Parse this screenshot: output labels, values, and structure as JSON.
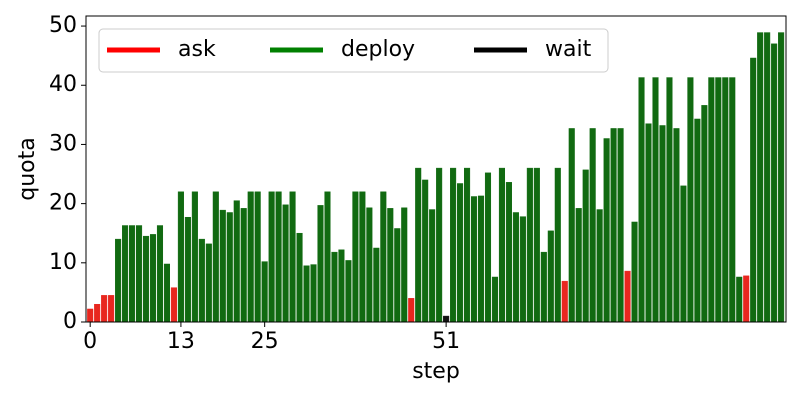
{
  "chart_data": {
    "type": "bar",
    "xlabel": "step",
    "ylabel": "quota",
    "xlim": [
      -0.6,
      99.7
    ],
    "ylim": [
      0,
      51.7
    ],
    "xticks": [
      0,
      13,
      25,
      51
    ],
    "yticks": [
      0,
      10,
      20,
      30,
      40,
      50
    ],
    "grid": false,
    "legend": "upper left",
    "series": [
      {
        "name": "ask",
        "color": "red",
        "x": [
          0,
          1,
          2,
          3,
          12,
          46,
          68,
          77,
          94
        ],
        "values": [
          2.2,
          3,
          4.5,
          4.5,
          5.8,
          4,
          6.9,
          8.6,
          7.8
        ]
      },
      {
        "name": "deploy",
        "color": "green",
        "x": [
          4,
          5,
          6,
          7,
          8,
          9,
          10,
          11,
          13,
          14,
          15,
          16,
          17,
          18,
          19,
          20,
          21,
          22,
          23,
          24,
          25,
          26,
          27,
          28,
          29,
          30,
          31,
          32,
          33,
          34,
          35,
          36,
          37,
          38,
          39,
          40,
          41,
          42,
          43,
          44,
          45,
          47,
          48,
          49,
          50,
          52,
          53,
          54,
          55,
          56,
          57,
          58,
          59,
          60,
          61,
          62,
          63,
          64,
          65,
          66,
          67,
          69,
          70,
          71,
          72,
          73,
          74,
          75,
          76,
          78,
          79,
          80,
          81,
          82,
          83,
          84,
          85,
          86,
          87,
          88,
          89,
          90,
          91,
          92,
          93,
          95,
          96,
          97,
          98,
          99
        ],
        "values": [
          14,
          16.3,
          16.3,
          16.3,
          14.5,
          14.8,
          16.3,
          9.8,
          22,
          17.7,
          22,
          14,
          13.2,
          22,
          18.9,
          18.5,
          20.5,
          19.2,
          22,
          22,
          10.2,
          22,
          22,
          19.8,
          22,
          15,
          9.5,
          9.7,
          19.7,
          22,
          11.8,
          12.2,
          10.4,
          22,
          22,
          19.3,
          12.5,
          22,
          19.2,
          15.8,
          19.3,
          26,
          24,
          19,
          26,
          26,
          23.4,
          26,
          21.2,
          21.3,
          25.2,
          7.6,
          26,
          23.6,
          18.5,
          17.8,
          26,
          26,
          11.8,
          15.4,
          26,
          32.7,
          19.2,
          25.7,
          32.7,
          19,
          31,
          32.7,
          32.7,
          16.9,
          41.3,
          33.5,
          41.3,
          33.2,
          41.3,
          32.7,
          23,
          41.3,
          34.3,
          36.6,
          41.3,
          41.3,
          41.3,
          41.3,
          7.6,
          44.6,
          48.9,
          48.9,
          47,
          48.9
        ]
      },
      {
        "name": "wait",
        "color": "black",
        "x": [
          51
        ],
        "values": [
          1
        ]
      }
    ]
  }
}
